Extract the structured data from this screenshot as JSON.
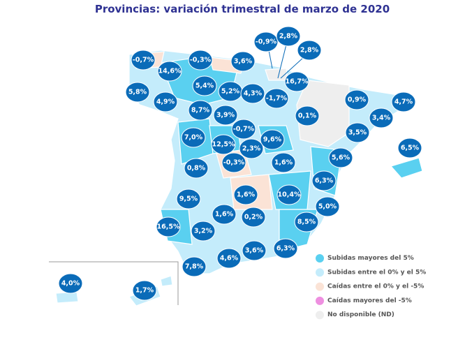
{
  "title": "Provincias: variación trimestral de marzo de 2020",
  "bubbles": [
    "-0,7%",
    "14,6%",
    "-0,3%",
    "3,6%",
    "-0,9%",
    "2,8%",
    "2,8%",
    "5,8%",
    "4,9%",
    "5,4%",
    "5,2%",
    "4,3%",
    "-1,7%",
    "16,7%",
    "0,9%",
    "4,7%",
    "8,7%",
    "3,9%",
    "0,1%",
    "3,4%",
    "7,0%",
    "-0,7%",
    "9,6%",
    "12,5%",
    "2,3%",
    "3,5%",
    "6,5%",
    "5,6%",
    "-0,3%",
    "1,6%",
    "0,8%",
    "6,3%",
    "1,6%",
    "10,4%",
    "9,5%",
    "5,0%",
    "1,6%",
    "0,2%",
    "8,5%",
    "16,5%",
    "3,2%",
    "3,6%",
    "6,3%",
    "4,6%",
    "7,8%",
    "4,0%",
    "1,7%"
  ],
  "legend": [
    {
      "label": "Subidas mayores del 5%",
      "color": "#5ad0f0"
    },
    {
      "label": "Subidas entre el 0% y el 5%",
      "color": "#c4ecfb"
    },
    {
      "label": "Caídas entre el 0% y el -5%",
      "color": "#fbe3d6"
    },
    {
      "label": "Caídas mayores del -5%",
      "color": "#ee8fe0"
    },
    {
      "label": "No disponible (ND)",
      "color": "#eeeeee"
    }
  ]
}
